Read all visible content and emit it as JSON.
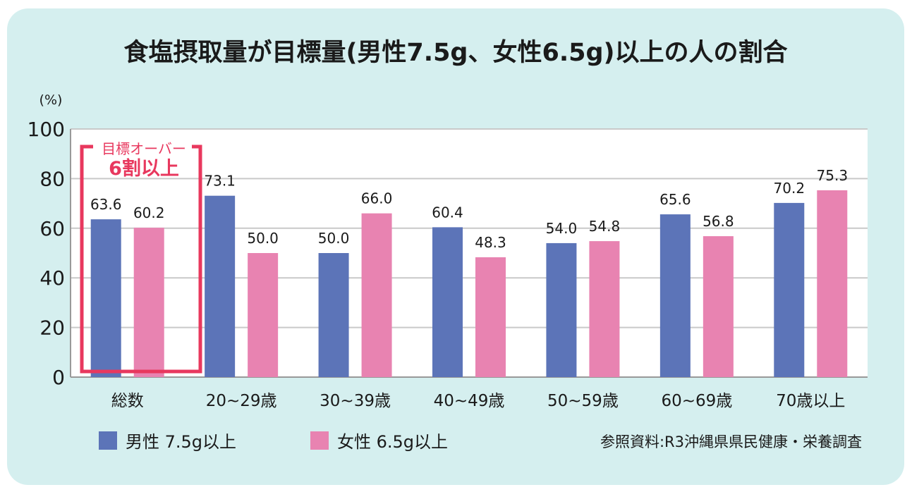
{
  "chart_data": {
    "type": "bar",
    "title": "食塩摂取量が目標量(男性7.5g、女性6.5g)以上の人の割合",
    "yunit": "(%)",
    "ylim": [
      0,
      100
    ],
    "yticks": [
      "0",
      "20",
      "40",
      "60",
      "80",
      "100"
    ],
    "grid": true,
    "categories": [
      "総数",
      "20~29歳",
      "30~39歳",
      "40~49歳",
      "50~59歳",
      "60~69歳",
      "70歳以上"
    ],
    "series": [
      {
        "name": "男性 7.5g以上",
        "color": "#5c74b8",
        "values": [
          63.6,
          73.1,
          50.0,
          60.4,
          54.0,
          65.6,
          70.2
        ],
        "labels": [
          "63.6",
          "73.1",
          "50.0",
          "60.4",
          "54.0",
          "65.6",
          "70.2"
        ]
      },
      {
        "name": "女性 6.5g以上",
        "color": "#e883b1",
        "values": [
          60.2,
          50.0,
          66.0,
          48.3,
          54.8,
          56.8,
          75.3
        ],
        "labels": [
          "60.2",
          "50.0",
          "66.0",
          "48.3",
          "54.8",
          "56.8",
          "75.3"
        ]
      }
    ],
    "annotation": {
      "line1": "目標オーバー",
      "line2": "6割以上",
      "color": "#e8385e"
    },
    "source": "参照資料:R3沖縄県県民健康・栄養調査",
    "legend_position": "bottom"
  }
}
